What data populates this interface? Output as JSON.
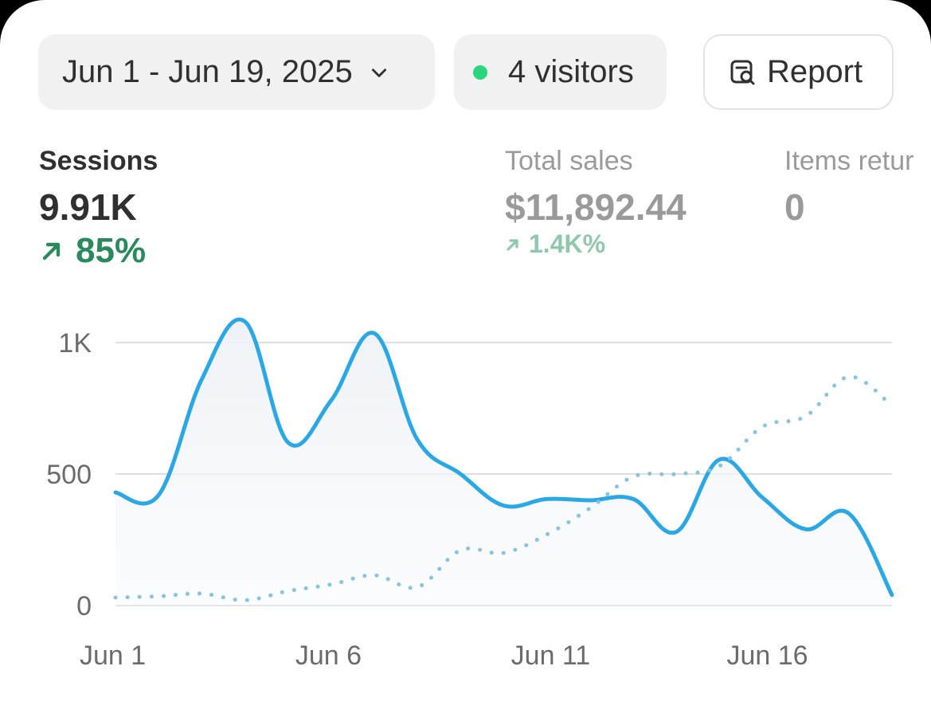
{
  "filters": {
    "date_range": "Jun 1 - Jun 19, 2025",
    "visitors": "4 visitors",
    "report_label": "Report"
  },
  "metrics": [
    {
      "label": "Sessions",
      "value": "9.91K",
      "delta": "85%"
    },
    {
      "label": "Total sales",
      "value": "$11,892.44",
      "delta": "1.4K%"
    },
    {
      "label": "Items retur",
      "value": "0"
    }
  ],
  "colors": {
    "accent": "#2aa8e6",
    "positive": "#2a8a5e",
    "live_dot": "#2bd67b"
  },
  "chart_data": {
    "type": "line",
    "x": [
      "Jun 1",
      "Jun 2",
      "Jun 3",
      "Jun 4",
      "Jun 5",
      "Jun 6",
      "Jun 7",
      "Jun 8",
      "Jun 9",
      "Jun 10",
      "Jun 11",
      "Jun 12",
      "Jun 13",
      "Jun 14",
      "Jun 15",
      "Jun 16",
      "Jun 17",
      "Jun 18",
      "Jun 19"
    ],
    "x_tick_labels": [
      "Jun 1",
      "Jun 6",
      "Jun 11",
      "Jun 16"
    ],
    "y_ticks": [
      0,
      500,
      1000
    ],
    "y_tick_labels": [
      "0",
      "500",
      "1K"
    ],
    "ylim": [
      0,
      1100
    ],
    "series": [
      {
        "style": "solid",
        "values": [
          430,
          420,
          860,
          1080,
          620,
          780,
          1035,
          630,
          500,
          380,
          405,
          400,
          405,
          280,
          555,
          410,
          290,
          350,
          40
        ]
      },
      {
        "style": "dotted",
        "values": [
          30,
          35,
          45,
          20,
          55,
          80,
          115,
          70,
          210,
          200,
          270,
          370,
          490,
          500,
          530,
          680,
          720,
          870,
          760
        ]
      }
    ],
    "grid": true,
    "legend": "none"
  }
}
